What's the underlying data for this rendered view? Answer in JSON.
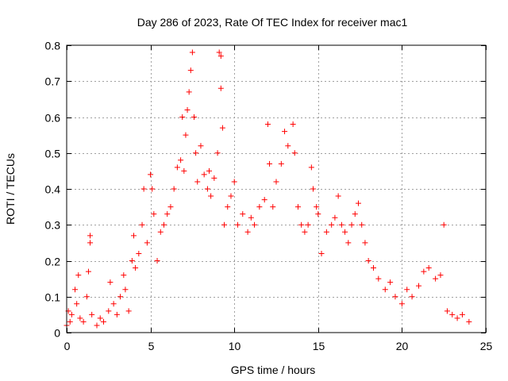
{
  "chart_data": {
    "type": "scatter",
    "title": "Day 286 of 2023, Rate Of TEC Index for receiver mac1",
    "xlabel": "GPS time / hours",
    "ylabel": "ROTI / TECUs",
    "xlim": [
      0,
      25
    ],
    "ylim": [
      0,
      0.8
    ],
    "x_ticks": [
      0,
      5,
      10,
      15,
      20,
      25
    ],
    "y_ticks": [
      0,
      0.1,
      0.2,
      0.3,
      0.4,
      0.5,
      0.6,
      0.7,
      0.8
    ],
    "x_tick_labels": [
      "0",
      "5",
      "10",
      "15",
      "20",
      "25"
    ],
    "y_tick_labels": [
      "0",
      "0.1",
      "0.2",
      "0.3",
      "0.4",
      "0.5",
      "0.6",
      "0.7",
      "0.8"
    ],
    "grid": true,
    "marker": "+",
    "marker_color": "#ff0000",
    "series": [
      {
        "points": [
          [
            0.0,
            0.02
          ],
          [
            0.1,
            0.06
          ],
          [
            0.2,
            0.03
          ],
          [
            0.3,
            0.05
          ],
          [
            0.5,
            0.12
          ],
          [
            0.6,
            0.08
          ],
          [
            0.7,
            0.16
          ],
          [
            0.8,
            0.04
          ],
          [
            1.0,
            0.03
          ],
          [
            1.2,
            0.1
          ],
          [
            1.3,
            0.17
          ],
          [
            1.4,
            0.27
          ],
          [
            1.4,
            0.25
          ],
          [
            1.5,
            0.05
          ],
          [
            1.8,
            0.02
          ],
          [
            2.0,
            0.04
          ],
          [
            2.2,
            0.03
          ],
          [
            2.5,
            0.06
          ],
          [
            2.6,
            0.14
          ],
          [
            2.8,
            0.08
          ],
          [
            3.0,
            0.05
          ],
          [
            3.2,
            0.1
          ],
          [
            3.4,
            0.16
          ],
          [
            3.5,
            0.12
          ],
          [
            3.7,
            0.06
          ],
          [
            3.9,
            0.2
          ],
          [
            4.0,
            0.27
          ],
          [
            4.1,
            0.18
          ],
          [
            4.3,
            0.22
          ],
          [
            4.5,
            0.3
          ],
          [
            4.6,
            0.4
          ],
          [
            4.8,
            0.25
          ],
          [
            5.0,
            0.44
          ],
          [
            5.1,
            0.4
          ],
          [
            5.2,
            0.33
          ],
          [
            5.4,
            0.2
          ],
          [
            5.6,
            0.28
          ],
          [
            5.8,
            0.3
          ],
          [
            6.0,
            0.33
          ],
          [
            6.2,
            0.35
          ],
          [
            6.4,
            0.4
          ],
          [
            6.6,
            0.46
          ],
          [
            6.8,
            0.48
          ],
          [
            6.9,
            0.6
          ],
          [
            7.0,
            0.45
          ],
          [
            7.1,
            0.55
          ],
          [
            7.2,
            0.62
          ],
          [
            7.3,
            0.67
          ],
          [
            7.4,
            0.73
          ],
          [
            7.5,
            0.78
          ],
          [
            7.6,
            0.6
          ],
          [
            7.7,
            0.5
          ],
          [
            7.8,
            0.42
          ],
          [
            8.0,
            0.52
          ],
          [
            8.2,
            0.44
          ],
          [
            8.4,
            0.4
          ],
          [
            8.5,
            0.45
          ],
          [
            8.6,
            0.38
          ],
          [
            8.8,
            0.43
          ],
          [
            9.0,
            0.5
          ],
          [
            9.1,
            0.78
          ],
          [
            9.2,
            0.77
          ],
          [
            9.2,
            0.68
          ],
          [
            9.3,
            0.57
          ],
          [
            9.4,
            0.3
          ],
          [
            9.6,
            0.35
          ],
          [
            9.8,
            0.38
          ],
          [
            10.0,
            0.42
          ],
          [
            10.2,
            0.3
          ],
          [
            10.5,
            0.33
          ],
          [
            10.8,
            0.28
          ],
          [
            11.0,
            0.32
          ],
          [
            11.2,
            0.3
          ],
          [
            11.5,
            0.35
          ],
          [
            11.8,
            0.37
          ],
          [
            12.0,
            0.58
          ],
          [
            12.1,
            0.47
          ],
          [
            12.3,
            0.35
          ],
          [
            12.5,
            0.42
          ],
          [
            12.8,
            0.47
          ],
          [
            13.0,
            0.56
          ],
          [
            13.2,
            0.52
          ],
          [
            13.5,
            0.58
          ],
          [
            13.6,
            0.5
          ],
          [
            13.8,
            0.35
          ],
          [
            14.0,
            0.3
          ],
          [
            14.2,
            0.28
          ],
          [
            14.4,
            0.3
          ],
          [
            14.6,
            0.46
          ],
          [
            14.7,
            0.4
          ],
          [
            14.9,
            0.35
          ],
          [
            15.0,
            0.33
          ],
          [
            15.2,
            0.22
          ],
          [
            15.5,
            0.28
          ],
          [
            15.8,
            0.3
          ],
          [
            16.0,
            0.32
          ],
          [
            16.2,
            0.38
          ],
          [
            16.4,
            0.3
          ],
          [
            16.6,
            0.28
          ],
          [
            16.8,
            0.25
          ],
          [
            17.0,
            0.3
          ],
          [
            17.2,
            0.33
          ],
          [
            17.4,
            0.36
          ],
          [
            17.6,
            0.3
          ],
          [
            17.8,
            0.25
          ],
          [
            18.0,
            0.2
          ],
          [
            18.3,
            0.18
          ],
          [
            18.6,
            0.15
          ],
          [
            19.0,
            0.12
          ],
          [
            19.3,
            0.14
          ],
          [
            19.6,
            0.1
          ],
          [
            20.0,
            0.08
          ],
          [
            20.3,
            0.12
          ],
          [
            20.6,
            0.1
          ],
          [
            21.0,
            0.13
          ],
          [
            21.3,
            0.17
          ],
          [
            21.6,
            0.18
          ],
          [
            22.0,
            0.15
          ],
          [
            22.3,
            0.16
          ],
          [
            22.5,
            0.3
          ],
          [
            22.7,
            0.06
          ],
          [
            23.0,
            0.05
          ],
          [
            23.3,
            0.04
          ],
          [
            23.6,
            0.05
          ],
          [
            24.0,
            0.03
          ]
        ]
      }
    ]
  }
}
